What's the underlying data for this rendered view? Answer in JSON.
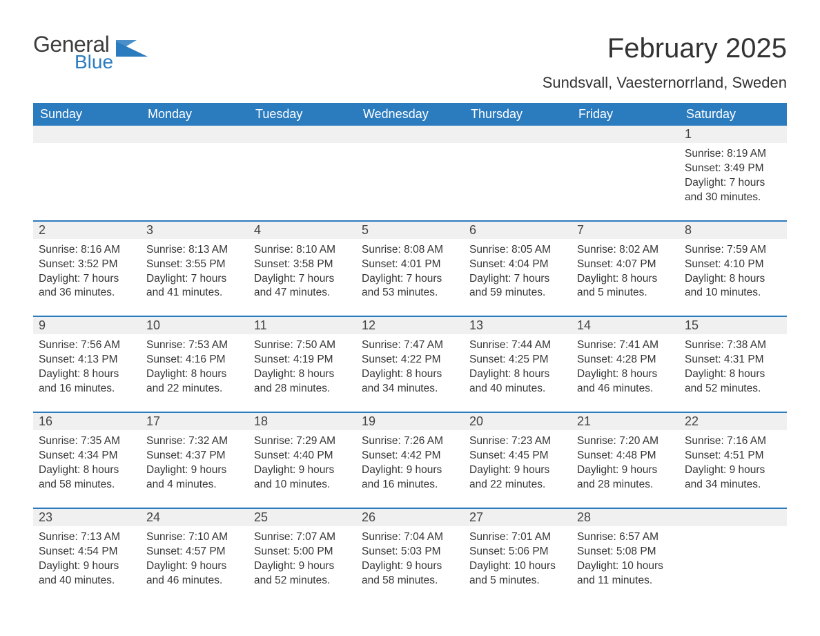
{
  "logo": {
    "word1": "General",
    "word2": "Blue",
    "color_general": "#3d3d3d",
    "color_blue": "#2b7bbf",
    "icon_color": "#2b7bbf"
  },
  "title": {
    "month_year": "February 2025",
    "location": "Sundsvall, Vaesternorrland, Sweden",
    "title_fontsize": 40,
    "location_fontsize": 22,
    "text_color": "#333333"
  },
  "colors": {
    "header_bg": "#2b7bbf",
    "header_text": "#ffffff",
    "daynum_bg": "#f0f0f0",
    "week_divider": "#2b7bbf",
    "body_text": "#363636",
    "background": "#ffffff"
  },
  "weekdays": [
    "Sunday",
    "Monday",
    "Tuesday",
    "Wednesday",
    "Thursday",
    "Friday",
    "Saturday"
  ],
  "weeks": [
    [
      {
        "num": "",
        "sunrise": "",
        "sunset": "",
        "daylight": ""
      },
      {
        "num": "",
        "sunrise": "",
        "sunset": "",
        "daylight": ""
      },
      {
        "num": "",
        "sunrise": "",
        "sunset": "",
        "daylight": ""
      },
      {
        "num": "",
        "sunrise": "",
        "sunset": "",
        "daylight": ""
      },
      {
        "num": "",
        "sunrise": "",
        "sunset": "",
        "daylight": ""
      },
      {
        "num": "",
        "sunrise": "",
        "sunset": "",
        "daylight": ""
      },
      {
        "num": "1",
        "sunrise": "Sunrise: 8:19 AM",
        "sunset": "Sunset: 3:49 PM",
        "daylight": "Daylight: 7 hours and 30 minutes."
      }
    ],
    [
      {
        "num": "2",
        "sunrise": "Sunrise: 8:16 AM",
        "sunset": "Sunset: 3:52 PM",
        "daylight": "Daylight: 7 hours and 36 minutes."
      },
      {
        "num": "3",
        "sunrise": "Sunrise: 8:13 AM",
        "sunset": "Sunset: 3:55 PM",
        "daylight": "Daylight: 7 hours and 41 minutes."
      },
      {
        "num": "4",
        "sunrise": "Sunrise: 8:10 AM",
        "sunset": "Sunset: 3:58 PM",
        "daylight": "Daylight: 7 hours and 47 minutes."
      },
      {
        "num": "5",
        "sunrise": "Sunrise: 8:08 AM",
        "sunset": "Sunset: 4:01 PM",
        "daylight": "Daylight: 7 hours and 53 minutes."
      },
      {
        "num": "6",
        "sunrise": "Sunrise: 8:05 AM",
        "sunset": "Sunset: 4:04 PM",
        "daylight": "Daylight: 7 hours and 59 minutes."
      },
      {
        "num": "7",
        "sunrise": "Sunrise: 8:02 AM",
        "sunset": "Sunset: 4:07 PM",
        "daylight": "Daylight: 8 hours and 5 minutes."
      },
      {
        "num": "8",
        "sunrise": "Sunrise: 7:59 AM",
        "sunset": "Sunset: 4:10 PM",
        "daylight": "Daylight: 8 hours and 10 minutes."
      }
    ],
    [
      {
        "num": "9",
        "sunrise": "Sunrise: 7:56 AM",
        "sunset": "Sunset: 4:13 PM",
        "daylight": "Daylight: 8 hours and 16 minutes."
      },
      {
        "num": "10",
        "sunrise": "Sunrise: 7:53 AM",
        "sunset": "Sunset: 4:16 PM",
        "daylight": "Daylight: 8 hours and 22 minutes."
      },
      {
        "num": "11",
        "sunrise": "Sunrise: 7:50 AM",
        "sunset": "Sunset: 4:19 PM",
        "daylight": "Daylight: 8 hours and 28 minutes."
      },
      {
        "num": "12",
        "sunrise": "Sunrise: 7:47 AM",
        "sunset": "Sunset: 4:22 PM",
        "daylight": "Daylight: 8 hours and 34 minutes."
      },
      {
        "num": "13",
        "sunrise": "Sunrise: 7:44 AM",
        "sunset": "Sunset: 4:25 PM",
        "daylight": "Daylight: 8 hours and 40 minutes."
      },
      {
        "num": "14",
        "sunrise": "Sunrise: 7:41 AM",
        "sunset": "Sunset: 4:28 PM",
        "daylight": "Daylight: 8 hours and 46 minutes."
      },
      {
        "num": "15",
        "sunrise": "Sunrise: 7:38 AM",
        "sunset": "Sunset: 4:31 PM",
        "daylight": "Daylight: 8 hours and 52 minutes."
      }
    ],
    [
      {
        "num": "16",
        "sunrise": "Sunrise: 7:35 AM",
        "sunset": "Sunset: 4:34 PM",
        "daylight": "Daylight: 8 hours and 58 minutes."
      },
      {
        "num": "17",
        "sunrise": "Sunrise: 7:32 AM",
        "sunset": "Sunset: 4:37 PM",
        "daylight": "Daylight: 9 hours and 4 minutes."
      },
      {
        "num": "18",
        "sunrise": "Sunrise: 7:29 AM",
        "sunset": "Sunset: 4:40 PM",
        "daylight": "Daylight: 9 hours and 10 minutes."
      },
      {
        "num": "19",
        "sunrise": "Sunrise: 7:26 AM",
        "sunset": "Sunset: 4:42 PM",
        "daylight": "Daylight: 9 hours and 16 minutes."
      },
      {
        "num": "20",
        "sunrise": "Sunrise: 7:23 AM",
        "sunset": "Sunset: 4:45 PM",
        "daylight": "Daylight: 9 hours and 22 minutes."
      },
      {
        "num": "21",
        "sunrise": "Sunrise: 7:20 AM",
        "sunset": "Sunset: 4:48 PM",
        "daylight": "Daylight: 9 hours and 28 minutes."
      },
      {
        "num": "22",
        "sunrise": "Sunrise: 7:16 AM",
        "sunset": "Sunset: 4:51 PM",
        "daylight": "Daylight: 9 hours and 34 minutes."
      }
    ],
    [
      {
        "num": "23",
        "sunrise": "Sunrise: 7:13 AM",
        "sunset": "Sunset: 4:54 PM",
        "daylight": "Daylight: 9 hours and 40 minutes."
      },
      {
        "num": "24",
        "sunrise": "Sunrise: 7:10 AM",
        "sunset": "Sunset: 4:57 PM",
        "daylight": "Daylight: 9 hours and 46 minutes."
      },
      {
        "num": "25",
        "sunrise": "Sunrise: 7:07 AM",
        "sunset": "Sunset: 5:00 PM",
        "daylight": "Daylight: 9 hours and 52 minutes."
      },
      {
        "num": "26",
        "sunrise": "Sunrise: 7:04 AM",
        "sunset": "Sunset: 5:03 PM",
        "daylight": "Daylight: 9 hours and 58 minutes."
      },
      {
        "num": "27",
        "sunrise": "Sunrise: 7:01 AM",
        "sunset": "Sunset: 5:06 PM",
        "daylight": "Daylight: 10 hours and 5 minutes."
      },
      {
        "num": "28",
        "sunrise": "Sunrise: 6:57 AM",
        "sunset": "Sunset: 5:08 PM",
        "daylight": "Daylight: 10 hours and 11 minutes."
      },
      {
        "num": "",
        "sunrise": "",
        "sunset": "",
        "daylight": ""
      }
    ]
  ]
}
